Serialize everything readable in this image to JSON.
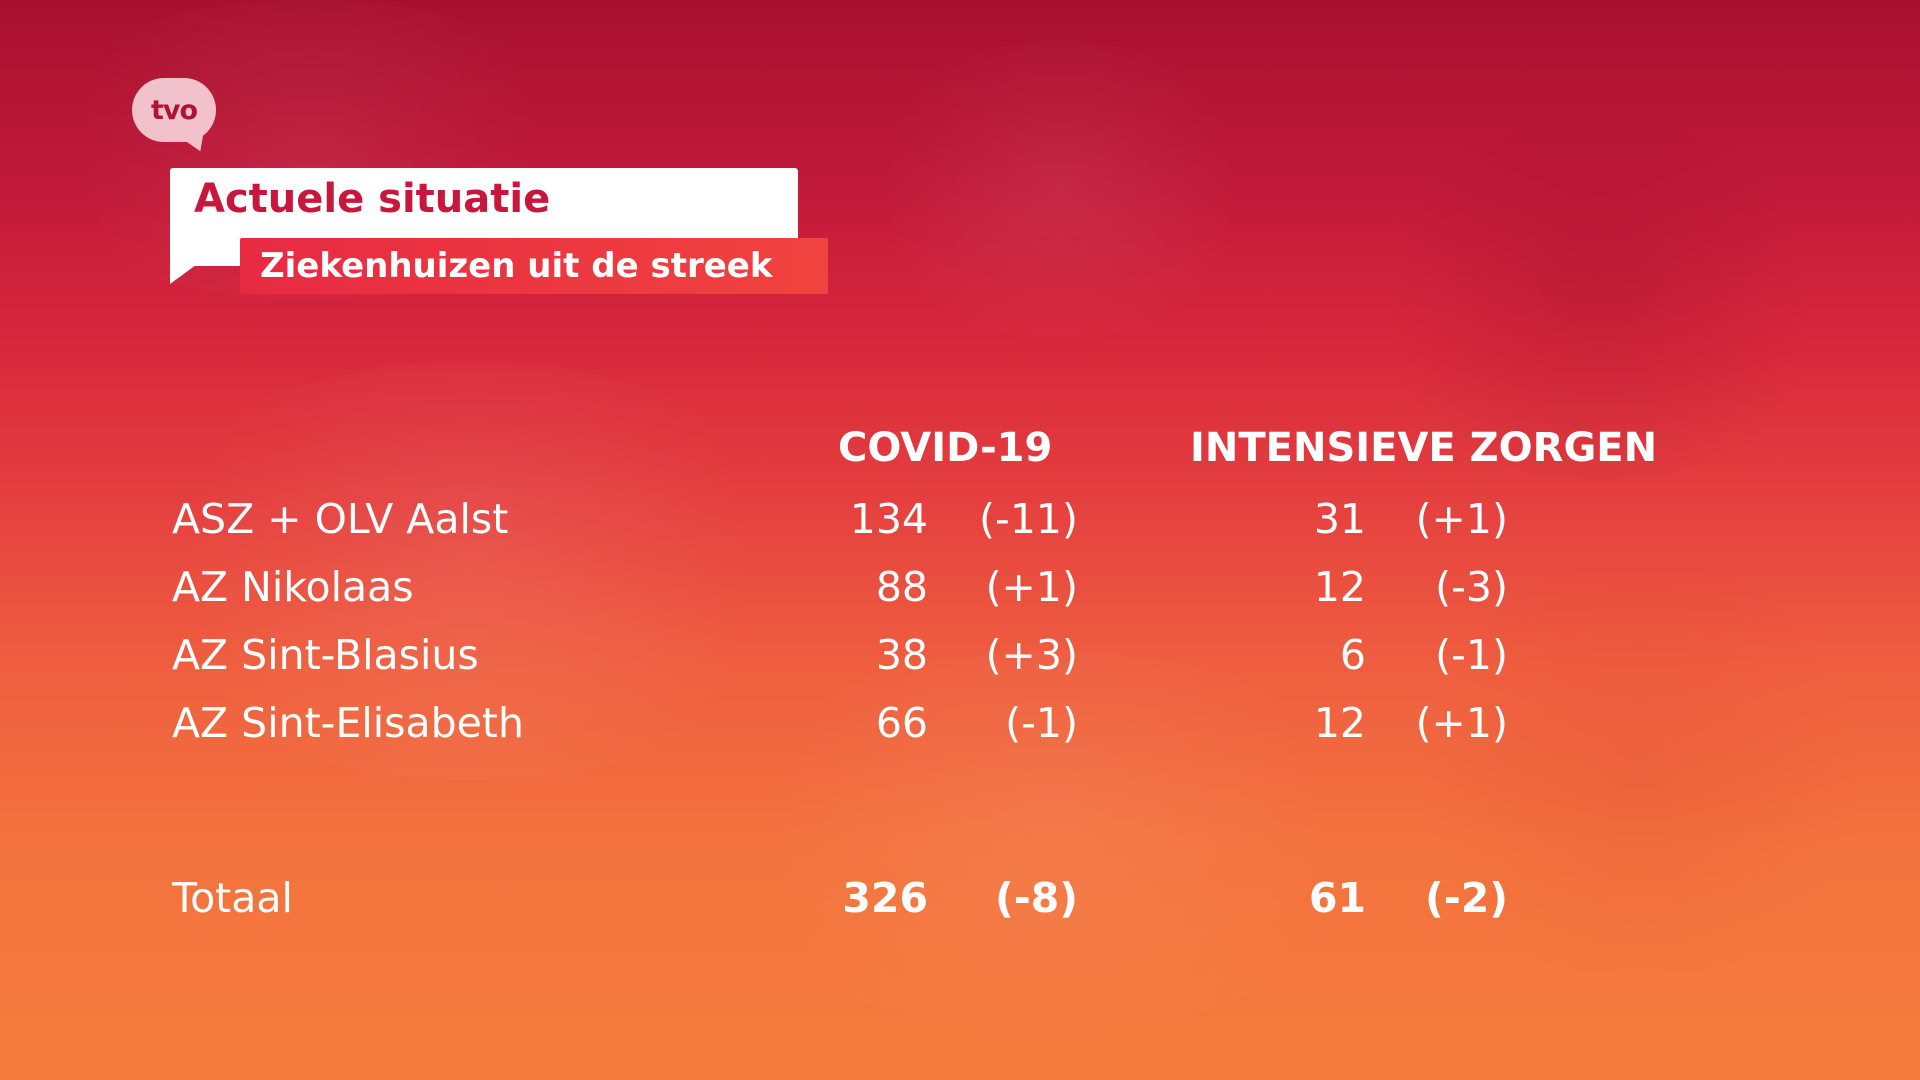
{
  "logo": {
    "text": "tvo"
  },
  "title": {
    "main": "Actuele situatie",
    "sub": "Ziekenhuizen uit de streek"
  },
  "table": {
    "headers": {
      "covid": "COVID-19",
      "iz": "INTENSIEVE ZORGEN"
    },
    "rows": [
      {
        "name": "ASZ + OLV Aalst",
        "covid": "134",
        "covid_change": "(-11)",
        "iz": "31",
        "iz_change": "(+1)"
      },
      {
        "name": "AZ Nikolaas",
        "covid": "88",
        "covid_change": "(+1)",
        "iz": "12",
        "iz_change": "(-3)"
      },
      {
        "name": "AZ Sint-Blasius",
        "covid": "38",
        "covid_change": "(+3)",
        "iz": "6",
        "iz_change": "(-1)"
      },
      {
        "name": "AZ Sint-Elisabeth",
        "covid": "66",
        "covid_change": "(-1)",
        "iz": "12",
        "iz_change": "(+1)"
      }
    ],
    "total": {
      "name": "Totaal",
      "covid": "326",
      "covid_change": "(-8)",
      "iz": "61",
      "iz_change": "(-2)"
    }
  },
  "colors": {
    "brand_red": "#c8173c",
    "subtitle_red": "#e72a42",
    "logo_pink": "#f1c2cc"
  }
}
